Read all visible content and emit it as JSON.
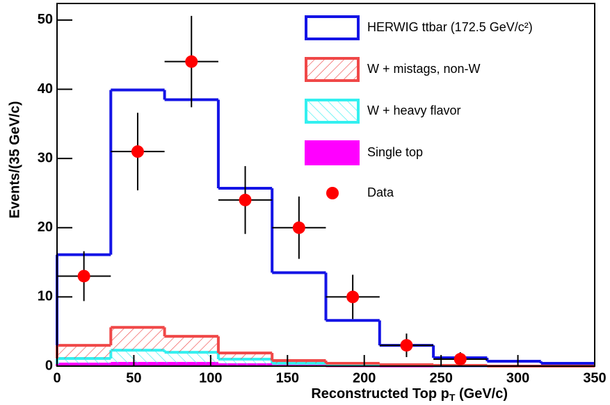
{
  "chart_data": {
    "type": "histogram",
    "stacked": true,
    "x_label": [
      "Reconstructed Top p",
      "T",
      " (GeV/c)"
    ],
    "y_label": "Events/(35 GeV/c)",
    "bins": [
      0,
      35,
      70,
      105,
      140,
      175,
      210,
      245,
      280,
      315,
      350
    ],
    "xlim": [
      0,
      350
    ],
    "ylim": [
      0,
      52.4
    ],
    "xticks": [
      0,
      50,
      100,
      150,
      200,
      250,
      300,
      350
    ],
    "yticks": [
      0,
      10,
      20,
      30,
      40,
      50
    ],
    "legend": "upper right",
    "series": [
      {
        "name": "HERWIG ttbar (172.5 GeV/c²)",
        "color": "#1414e6",
        "fill": "none",
        "values": [
          13.1,
          34.3,
          34.2,
          23.8,
          12.7,
          6.2,
          2.8,
          1.1,
          0.7,
          0.4
        ]
      },
      {
        "name": "W + mistags, non-W",
        "color": "#f04848",
        "fill": "hatch",
        "values": [
          1.9,
          3.3,
          2.3,
          0.9,
          0.4,
          0.2,
          0.1,
          0.05,
          0,
          0
        ]
      },
      {
        "name": "W + heavy flavor",
        "color": "#33f0f0",
        "fill": "backhatch",
        "values": [
          0.8,
          1.9,
          1.6,
          0.8,
          0.3,
          0.15,
          0.08,
          0.04,
          0,
          0
        ]
      },
      {
        "name": "Single top",
        "color": "#ff00ff",
        "fill": "solid",
        "values": [
          0.3,
          0.4,
          0.4,
          0.2,
          0.1,
          0.05,
          0.02,
          0.01,
          0,
          0
        ]
      }
    ],
    "data": {
      "name": "Data",
      "color": "#ff0000",
      "x": [
        17.5,
        52.5,
        87.5,
        122.5,
        157.5,
        192.5,
        227.5,
        262.5
      ],
      "values": [
        13,
        31,
        44,
        24,
        20,
        10,
        3,
        1
      ],
      "errors": [
        3.6,
        5.6,
        6.6,
        4.9,
        4.5,
        3.2,
        1.7,
        1
      ]
    }
  }
}
